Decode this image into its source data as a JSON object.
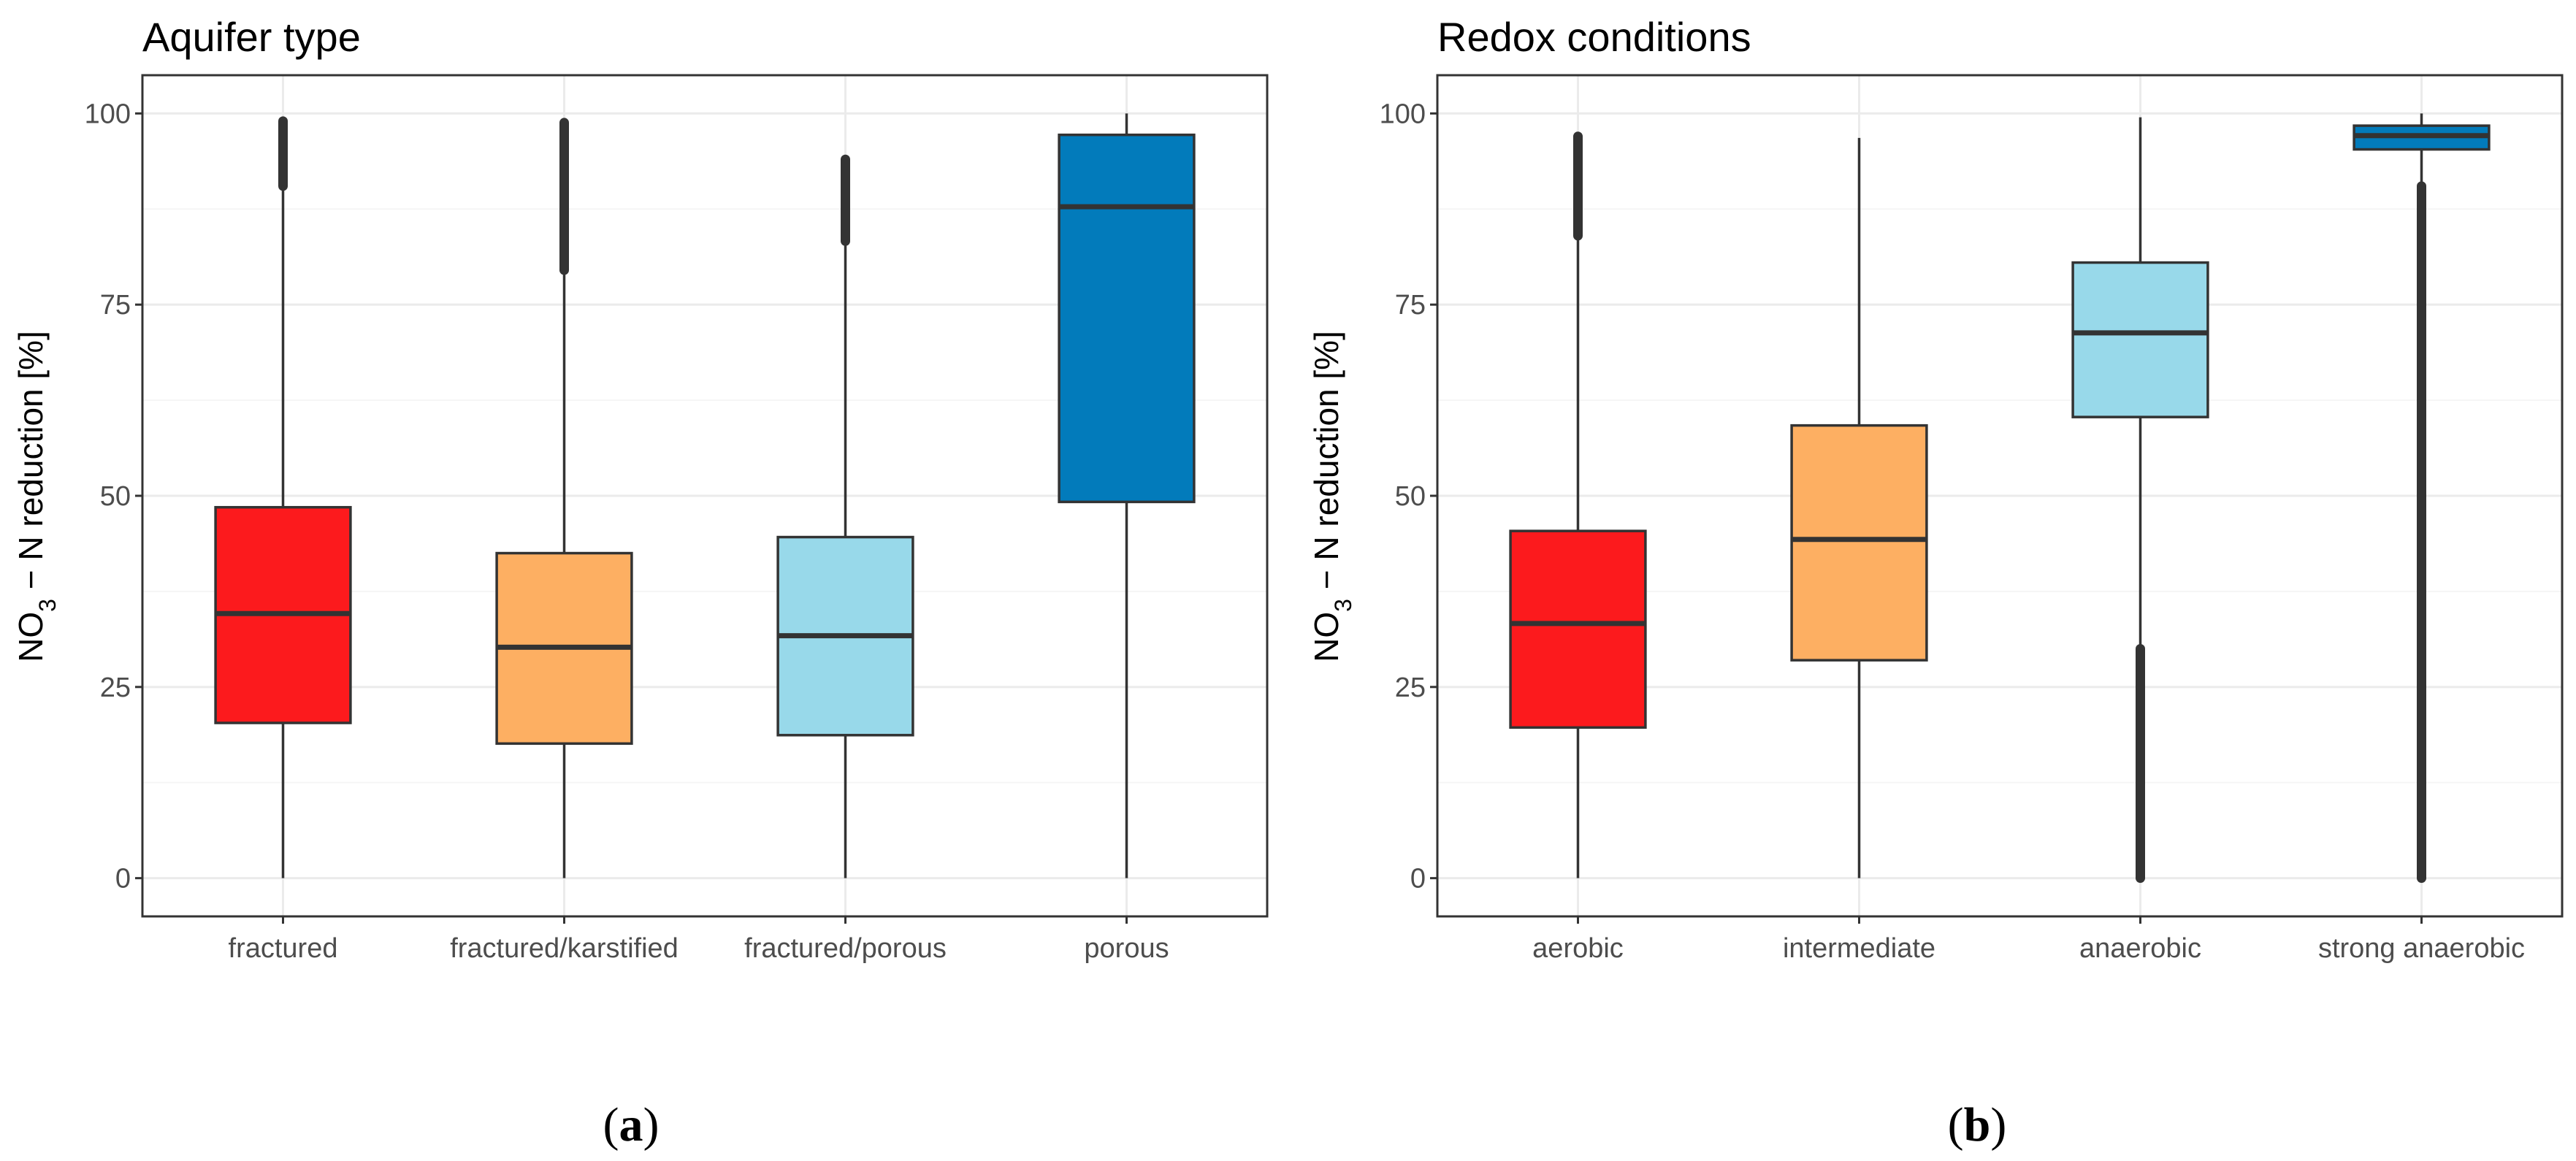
{
  "colors": {
    "panel_border": "#333333",
    "grid_major": "#ebebeb",
    "grid_minor": "#f5f5f5",
    "box_line": "#333333",
    "red": "#FC1A1D",
    "orange": "#FDAF62",
    "lightblue": "#98D9EA",
    "blue": "#027BBB"
  },
  "chart_data": [
    {
      "type": "box",
      "title": "Aquifer type",
      "ylabel": "NO3 − N reduction [%]",
      "ylabel_parts": {
        "base": "NO",
        "sub": "3",
        "rest": " − N reduction [%]"
      },
      "ylim": [
        -5,
        105
      ],
      "yticks": [
        0,
        25,
        50,
        75,
        100
      ],
      "grid": true,
      "categories": [
        "fractured",
        "fractured/karstified",
        "fractured/porous",
        "porous"
      ],
      "boxes": [
        {
          "category": "fractured",
          "color": "red",
          "whisker_low": 0,
          "q1": 20.3,
          "median": 34.6,
          "q3": 48.5,
          "whisker_high": 90.5,
          "outliers_range": [
            90.5,
            99
          ]
        },
        {
          "category": "fractured/karstified",
          "color": "orange",
          "whisker_low": 0,
          "q1": 17.6,
          "median": 30.2,
          "q3": 42.5,
          "whisker_high": 79.5,
          "outliers_range": [
            79.5,
            98.8
          ]
        },
        {
          "category": "fractured/porous",
          "color": "lightblue",
          "whisker_low": 0,
          "q1": 18.7,
          "median": 31.7,
          "q3": 44.6,
          "whisker_high": 83.3,
          "outliers_range": [
            83.3,
            94
          ]
        },
        {
          "category": "porous",
          "color": "blue",
          "whisker_low": 0,
          "q1": 49.2,
          "median": 87.8,
          "q3": 97.2,
          "whisker_high": 100,
          "outliers_range": null
        }
      ]
    },
    {
      "type": "box",
      "title": "Redox conditions",
      "ylabel": "NO3 − N reduction [%]",
      "ylabel_parts": {
        "base": "NO",
        "sub": "3",
        "rest": " − N reduction [%]"
      },
      "ylim": [
        -5,
        105
      ],
      "yticks": [
        0,
        25,
        50,
        75,
        100
      ],
      "grid": true,
      "categories": [
        "aerobic",
        "intermediate",
        "anaerobic",
        "strong anaerobic"
      ],
      "boxes": [
        {
          "category": "aerobic",
          "color": "red",
          "whisker_low": 0,
          "q1": 19.7,
          "median": 33.3,
          "q3": 45.4,
          "whisker_high": 84,
          "outliers_range": [
            84,
            97
          ]
        },
        {
          "category": "intermediate",
          "color": "orange",
          "whisker_low": 0,
          "q1": 28.5,
          "median": 44.3,
          "q3": 59.2,
          "whisker_high": 96.8,
          "outliers_range": null
        },
        {
          "category": "anaerobic",
          "color": "lightblue",
          "whisker_low": 30,
          "q1": 60.3,
          "median": 71.3,
          "q3": 80.5,
          "whisker_high": 99.5,
          "outliers_range": [
            0,
            30
          ]
        },
        {
          "category": "strong anaerobic",
          "color": "blue",
          "whisker_low": 90.5,
          "q1": 95.3,
          "median": 97.1,
          "q3": 98.4,
          "whisker_high": 100,
          "outliers_range": [
            0,
            90.5
          ]
        }
      ]
    }
  ],
  "captions": [
    {
      "open": "(",
      "letter": "a",
      "close": ")"
    },
    {
      "open": "(",
      "letter": "b",
      "close": ")"
    }
  ]
}
